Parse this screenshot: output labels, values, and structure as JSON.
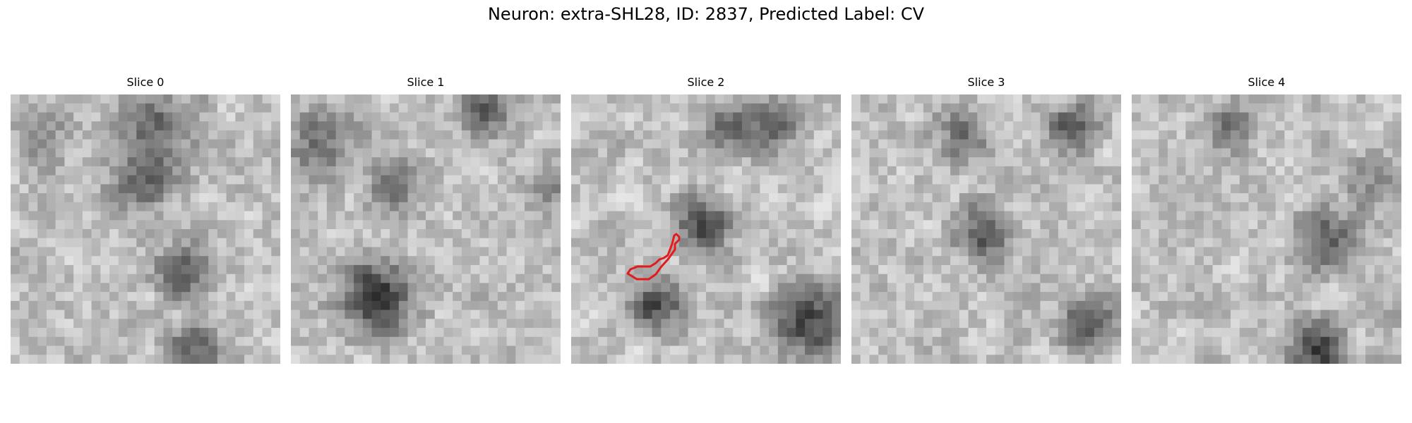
{
  "figure": {
    "title": "Neuron: extra-SHL28, ID: 2837, Predicted Label: CV"
  },
  "panels": [
    {
      "title": "Slice 0"
    },
    {
      "title": "Slice 1"
    },
    {
      "title": "Slice 2"
    },
    {
      "title": "Slice 3"
    },
    {
      "title": "Slice 4"
    }
  ],
  "colors": {
    "contour": "#e41a1c",
    "background": "#ffffff"
  },
  "contour_slice": "Slice 2"
}
